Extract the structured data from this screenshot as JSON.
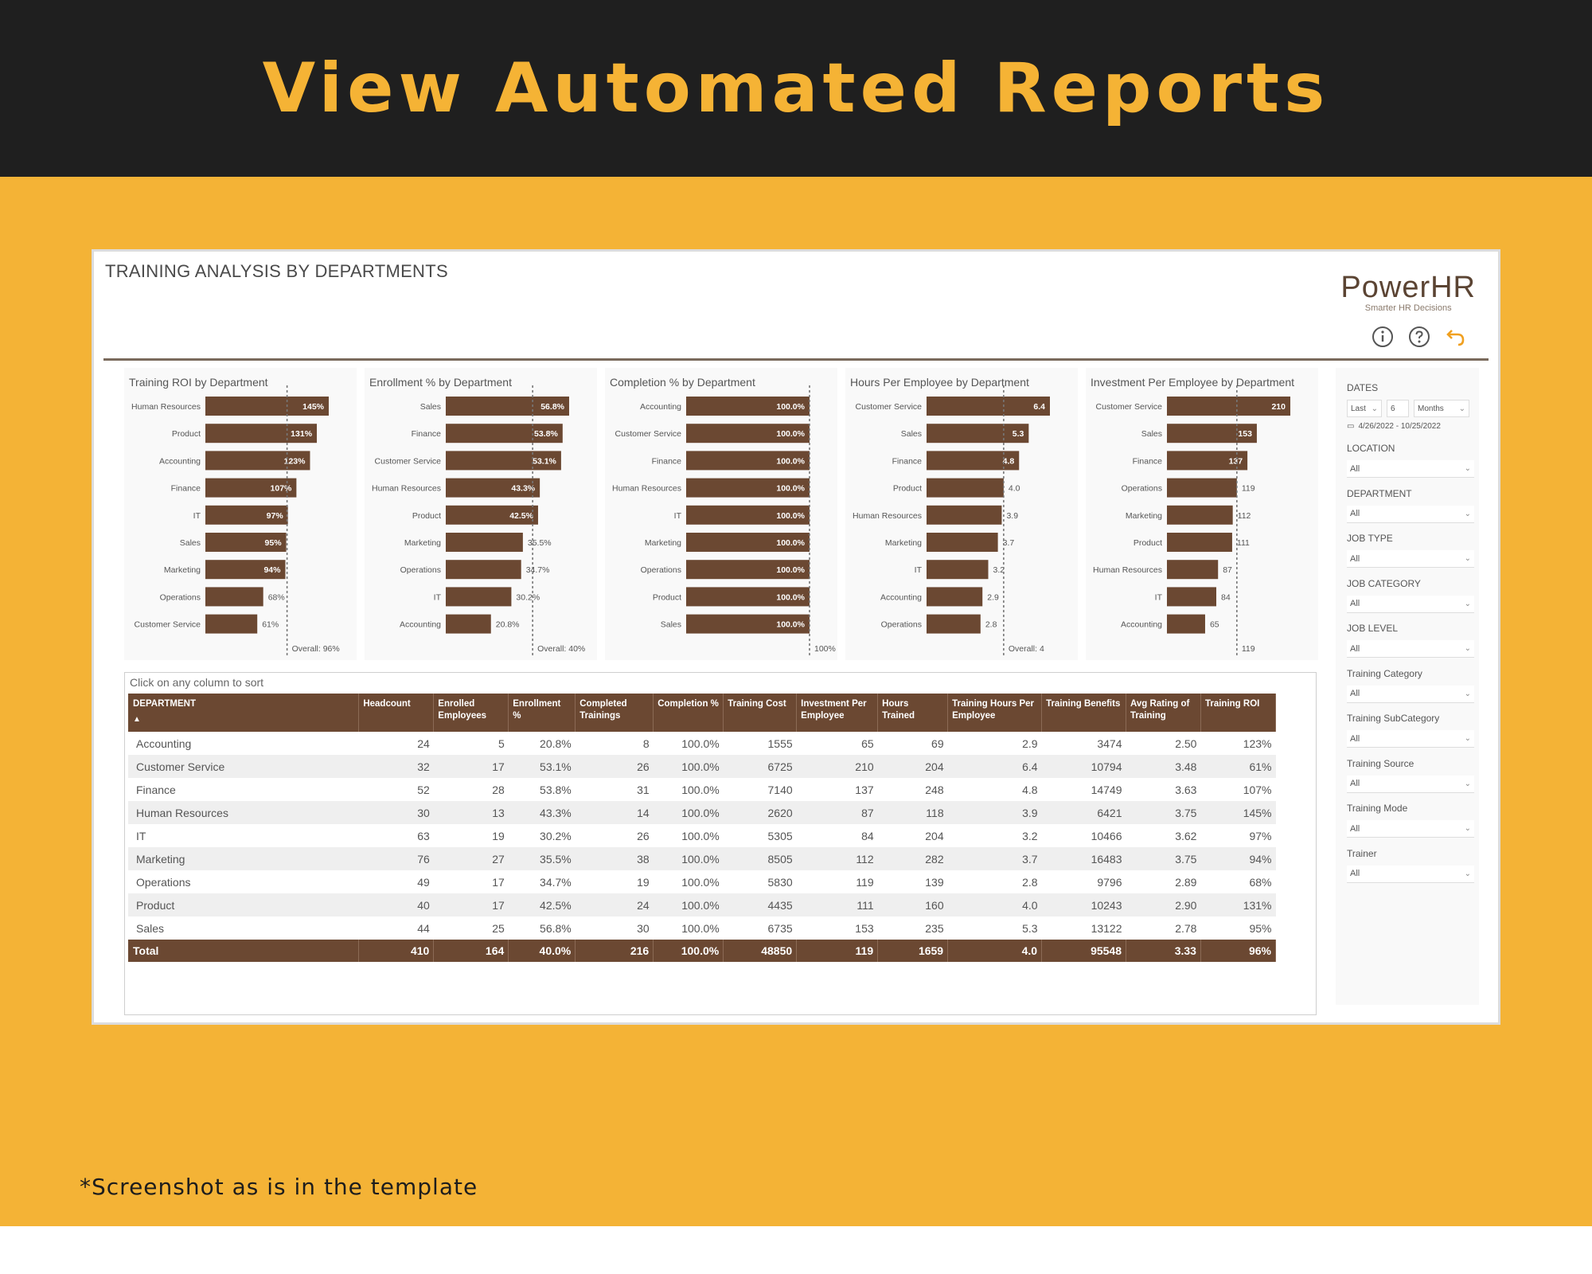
{
  "banner": {
    "title": "View Automated Reports"
  },
  "footnote": "*Screenshot as is in the template",
  "report": {
    "title": "TRAINING ANALYSIS BY DEPARTMENTS",
    "logo": {
      "name": "PowerHR",
      "tagline": "Smarter HR Decisions"
    },
    "icons": [
      "info-icon",
      "help-icon",
      "back-icon"
    ]
  },
  "colors": {
    "banner_bg": "#1f1f1f",
    "accent": "#f4b336",
    "bar": "#6b4832"
  },
  "chart_data": [
    {
      "type": "bar",
      "orientation": "horizontal",
      "title": "Training ROI by Department",
      "categories": [
        "Human Resources",
        "Product",
        "Accounting",
        "Finance",
        "IT",
        "Sales",
        "Marketing",
        "Operations",
        "Customer Service"
      ],
      "labels": [
        "145%",
        "131%",
        "123%",
        "107%",
        "97%",
        "95%",
        "94%",
        "68%",
        "61%"
      ],
      "values": [
        145,
        131,
        123,
        107,
        97,
        95,
        94,
        68,
        61
      ],
      "max": 145,
      "reference_value": 96,
      "reference_label": "Overall: 96%"
    },
    {
      "type": "bar",
      "orientation": "horizontal",
      "title": "Enrollment % by Department",
      "categories": [
        "Sales",
        "Finance",
        "Customer Service",
        "Human Resources",
        "Product",
        "Marketing",
        "Operations",
        "IT",
        "Accounting"
      ],
      "labels": [
        "56.8%",
        "53.8%",
        "53.1%",
        "43.3%",
        "42.5%",
        "35.5%",
        "34.7%",
        "30.2%",
        "20.8%"
      ],
      "values": [
        56.8,
        53.8,
        53.1,
        43.3,
        42.5,
        35.5,
        34.7,
        30.2,
        20.8
      ],
      "max": 56.8,
      "reference_value": 40,
      "reference_label": "Overall: 40%"
    },
    {
      "type": "bar",
      "orientation": "horizontal",
      "title": "Completion % by Department",
      "categories": [
        "Accounting",
        "Customer Service",
        "Finance",
        "Human Resources",
        "IT",
        "Marketing",
        "Operations",
        "Product",
        "Sales"
      ],
      "labels": [
        "100.0%",
        "100.0%",
        "100.0%",
        "100.0%",
        "100.0%",
        "100.0%",
        "100.0%",
        "100.0%",
        "100.0%"
      ],
      "values": [
        100,
        100,
        100,
        100,
        100,
        100,
        100,
        100,
        100
      ],
      "max": 100,
      "reference_value": 100,
      "reference_label": "100%"
    },
    {
      "type": "bar",
      "orientation": "horizontal",
      "title": "Hours Per Employee by Department",
      "categories": [
        "Customer Service",
        "Sales",
        "Finance",
        "Product",
        "Human Resources",
        "Marketing",
        "IT",
        "Accounting",
        "Operations"
      ],
      "labels": [
        "6.4",
        "5.3",
        "4.8",
        "4.0",
        "3.9",
        "3.7",
        "3.2",
        "2.9",
        "2.8"
      ],
      "values": [
        6.4,
        5.3,
        4.8,
        4.0,
        3.9,
        3.7,
        3.2,
        2.9,
        2.8
      ],
      "max": 6.4,
      "reference_value": 4,
      "reference_label": "Overall: 4"
    },
    {
      "type": "bar",
      "orientation": "horizontal",
      "title": "Investment Per Employee by Department",
      "categories": [
        "Customer Service",
        "Sales",
        "Finance",
        "Operations",
        "Marketing",
        "Product",
        "Human Resources",
        "IT",
        "Accounting"
      ],
      "labels": [
        "210",
        "153",
        "137",
        "119",
        "112",
        "111",
        "87",
        "84",
        "65"
      ],
      "values": [
        210,
        153,
        137,
        119,
        112,
        111,
        87,
        84,
        65
      ],
      "max": 210,
      "reference_value": 119,
      "reference_label": "119"
    }
  ],
  "table": {
    "hint": "Click on any column to sort",
    "sort_indicator": "▲",
    "columns": [
      "DEPARTMENT",
      "Headcount",
      "Enrolled Employees",
      "Enrollment %",
      "Completed Trainings",
      "Completion %",
      "Training Cost",
      "Investment Per Employee",
      "Hours Trained",
      "Training Hours Per Employee",
      "Training Benefits",
      "Avg Rating of Training",
      "Training ROI"
    ],
    "rows": [
      [
        "Accounting",
        "24",
        "5",
        "20.8%",
        "8",
        "100.0%",
        "1555",
        "65",
        "69",
        "2.9",
        "3474",
        "2.50",
        "123%"
      ],
      [
        "Customer Service",
        "32",
        "17",
        "53.1%",
        "26",
        "100.0%",
        "6725",
        "210",
        "204",
        "6.4",
        "10794",
        "3.48",
        "61%"
      ],
      [
        "Finance",
        "52",
        "28",
        "53.8%",
        "31",
        "100.0%",
        "7140",
        "137",
        "248",
        "4.8",
        "14749",
        "3.63",
        "107%"
      ],
      [
        "Human Resources",
        "30",
        "13",
        "43.3%",
        "14",
        "100.0%",
        "2620",
        "87",
        "118",
        "3.9",
        "6421",
        "3.75",
        "145%"
      ],
      [
        "IT",
        "63",
        "19",
        "30.2%",
        "26",
        "100.0%",
        "5305",
        "84",
        "204",
        "3.2",
        "10466",
        "3.62",
        "97%"
      ],
      [
        "Marketing",
        "76",
        "27",
        "35.5%",
        "38",
        "100.0%",
        "8505",
        "112",
        "282",
        "3.7",
        "16483",
        "3.75",
        "94%"
      ],
      [
        "Operations",
        "49",
        "17",
        "34.7%",
        "19",
        "100.0%",
        "5830",
        "119",
        "139",
        "2.8",
        "9796",
        "2.89",
        "68%"
      ],
      [
        "Product",
        "40",
        "17",
        "42.5%",
        "24",
        "100.0%",
        "4435",
        "111",
        "160",
        "4.0",
        "10243",
        "2.90",
        "131%"
      ],
      [
        "Sales",
        "44",
        "25",
        "56.8%",
        "30",
        "100.0%",
        "6735",
        "153",
        "235",
        "5.3",
        "13122",
        "2.78",
        "95%"
      ]
    ],
    "total": [
      "Total",
      "410",
      "164",
      "40.0%",
      "216",
      "100.0%",
      "48850",
      "119",
      "1659",
      "4.0",
      "95548",
      "3.33",
      "96%"
    ]
  },
  "filters": {
    "dates": {
      "label": "DATES",
      "mode": "Last",
      "count": "6",
      "unit": "Months",
      "range": "4/26/2022 - 10/25/2022"
    },
    "items": [
      {
        "label": "LOCATION",
        "value": "All"
      },
      {
        "label": "DEPARTMENT",
        "value": "All"
      },
      {
        "label": "JOB TYPE",
        "value": "All"
      },
      {
        "label": "JOB CATEGORY",
        "value": "All"
      },
      {
        "label": "JOB LEVEL",
        "value": "All"
      },
      {
        "label": "Training Category",
        "value": "All"
      },
      {
        "label": "Training SubCategory",
        "value": "All"
      },
      {
        "label": "Training Source",
        "value": "All"
      },
      {
        "label": "Training Mode",
        "value": "All"
      },
      {
        "label": "Trainer",
        "value": "All"
      }
    ]
  }
}
